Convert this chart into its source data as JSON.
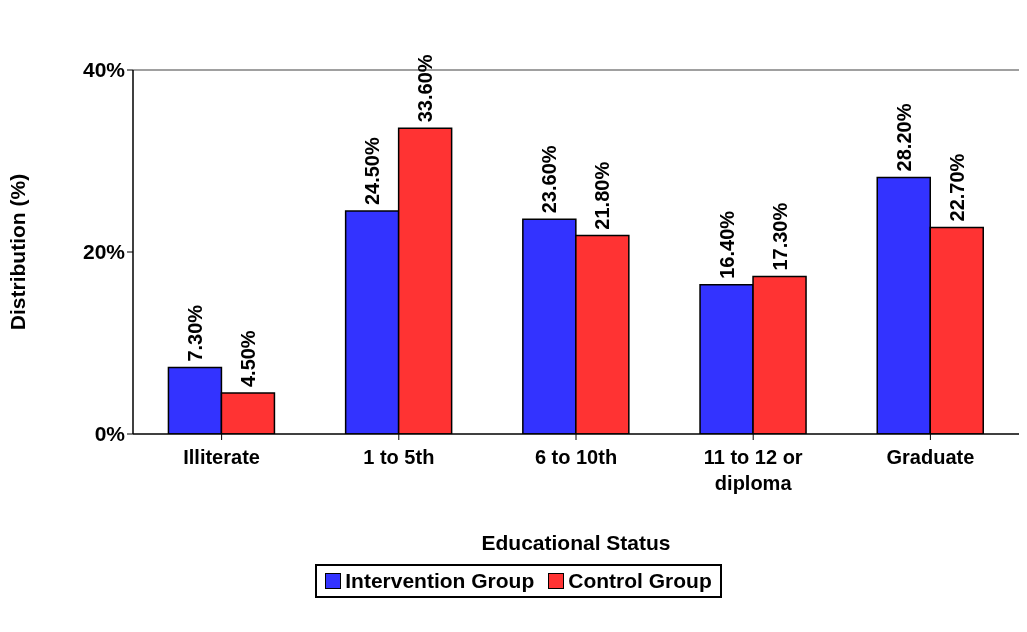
{
  "chart_data": {
    "type": "bar",
    "xlabel": "Educational Status",
    "ylabel": "Distribution (%)",
    "categories": [
      "Illiterate",
      "1 to 5th",
      "6 to 10th",
      "11 to 12 or diploma",
      "Graduate"
    ],
    "series": [
      {
        "name": "Intervention Group",
        "color": "#3333ff",
        "values": [
          7.3,
          24.5,
          23.6,
          16.4,
          28.2
        ],
        "value_labels": [
          "7.30%",
          "24.50%",
          "23.60%",
          "16.40%",
          "28.20%"
        ]
      },
      {
        "name": "Control Group",
        "color": "#ff3333",
        "values": [
          4.5,
          33.6,
          21.8,
          17.3,
          22.7
        ],
        "value_labels": [
          "4.50%",
          "33.60%",
          "21.80%",
          "17.30%",
          "22.70%"
        ]
      }
    ],
    "ylim": [
      0,
      40
    ],
    "yticks": [
      {
        "value": 0,
        "label": "0%"
      },
      {
        "value": 20,
        "label": "20%"
      },
      {
        "value": 40,
        "label": "40%"
      }
    ],
    "ref_lines": [
      {
        "axis": "y",
        "value": 40,
        "color": "#808080"
      }
    ],
    "legend": "bottom"
  }
}
